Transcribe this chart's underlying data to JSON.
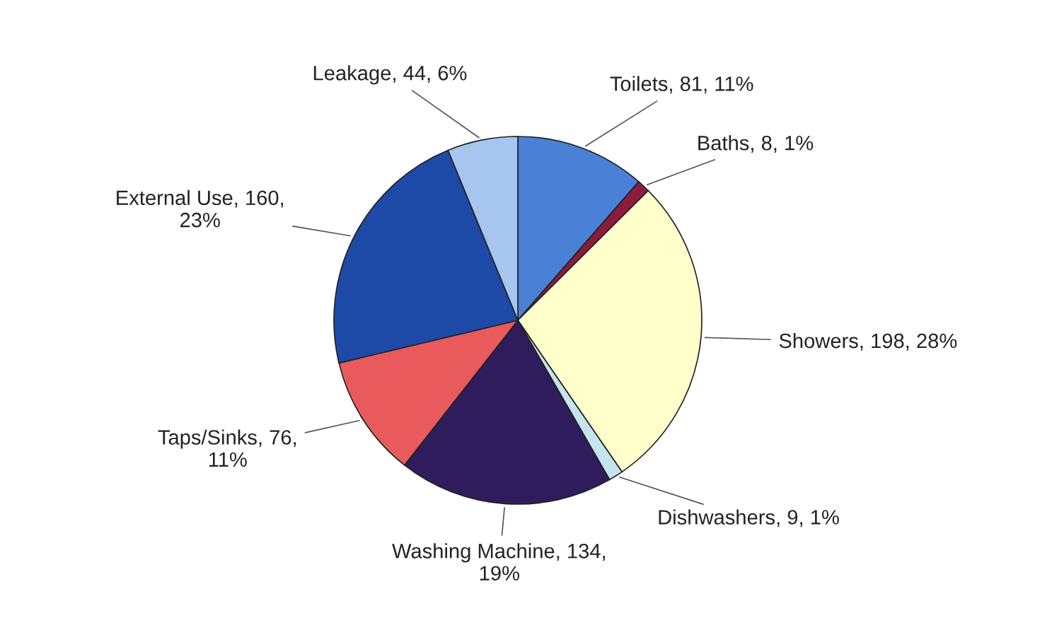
{
  "chart_data": {
    "type": "pie",
    "categories": [
      "Toilets",
      "Baths",
      "Showers",
      "Dishwashers",
      "Washing Machine",
      "Taps/Sinks",
      "External Use",
      "Leakage"
    ],
    "values": [
      81,
      8,
      198,
      9,
      134,
      76,
      160,
      44
    ],
    "value_labels": [
      "81, 11%",
      "8, 1%",
      "198, 28%",
      "9, 1%",
      "134, 19%",
      "76, 11%",
      "160, 23%",
      "44, 6%"
    ],
    "colors": [
      "#4a80d6",
      "#8c1c3c",
      "#ffffcc",
      "#c6e4ee",
      "#2f1c5c",
      "#e85a5c",
      "#1c4aa6",
      "#a6c6f0"
    ],
    "legend": false
  }
}
